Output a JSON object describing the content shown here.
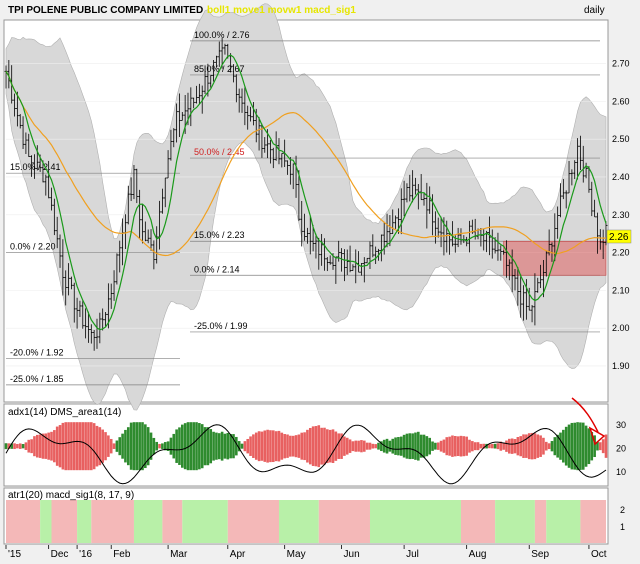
{
  "header": {
    "title": "TPI POLENE PUBLIC COMPANY LIMITED",
    "indicators": "boll1 move1 movw1 macd_sig1",
    "period": "daily"
  },
  "panels": {
    "adx_label": "adx1(14) DMS_area1(14)",
    "atr_label": "atr1(20) macd_sig1(8, 17, 9)"
  },
  "colors": {
    "bg": "#ffffff",
    "candle": "#000000",
    "band_fill": "#d8d8d8",
    "ma_fast": "#1a9a1a",
    "ma_slow": "#f0a020",
    "fib_line": "#808080",
    "box_fill": "#e06c6c",
    "price_tag": "#ffff00",
    "dms_pos": "#2e8b2e",
    "dms_neg": "#e86060",
    "atr_green": "#b8f0a8",
    "atr_red": "#f4b8b8",
    "annotation": "#e00000",
    "title_accent": "#e6e600"
  },
  "chart_data": {
    "type": "candlestick",
    "title": "TPI POLENE PUBLIC COMPANY LIMITED",
    "period": "daily",
    "y_axis": {
      "ticks": [
        1.9,
        2.0,
        2.1,
        2.2,
        2.3,
        2.4,
        2.5,
        2.6,
        2.7
      ],
      "tick_labels": [
        "1.90",
        "2.00",
        "2.10",
        "2.20",
        "2.30",
        "2.40",
        "2.50",
        "2.60",
        "2.70"
      ],
      "range": [
        1.81,
        2.81
      ]
    },
    "x_axis": {
      "labels": [
        "'15",
        "Dec",
        "'16",
        "Feb",
        "Mar",
        "Apr",
        "May",
        "Jun",
        "Jul",
        "Aug",
        "Sep",
        "Oct"
      ],
      "label_positions_day": [
        0,
        15,
        25,
        37,
        57,
        78,
        98,
        118,
        140,
        162,
        184,
        205
      ]
    },
    "last_price": "2.26",
    "fib_levels": [
      {
        "label": "100.0% / 2.76",
        "value": 2.76
      },
      {
        "label": "85.0% / 2.67",
        "value": 2.67
      },
      {
        "label": "50.0% / 2.45",
        "value": 2.45
      },
      {
        "label": "15.0% / 2.23",
        "value": 2.23
      },
      {
        "label": "0.0% / 2.14",
        "value": 2.14
      },
      {
        "label": "-25.0% / 1.99",
        "value": 1.99
      },
      {
        "label": "15.0% / 2.41",
        "value": 2.41
      },
      {
        "label": "0.0% / 2.20",
        "value": 2.2
      },
      {
        "label": "-20.0% / 1.92",
        "value": 1.92
      },
      {
        "label": "-25.0% / 1.85",
        "value": 1.85
      }
    ],
    "keypoints_day_close": [
      [
        0,
        2.68
      ],
      [
        8,
        2.45
      ],
      [
        14,
        2.4
      ],
      [
        20,
        2.15
      ],
      [
        25,
        2.05
      ],
      [
        30,
        1.98
      ],
      [
        33,
        2.0
      ],
      [
        37,
        2.1
      ],
      [
        42,
        2.3
      ],
      [
        45,
        2.4
      ],
      [
        48,
        2.25
      ],
      [
        52,
        2.2
      ],
      [
        56,
        2.42
      ],
      [
        60,
        2.55
      ],
      [
        66,
        2.6
      ],
      [
        72,
        2.68
      ],
      [
        77,
        2.73
      ],
      [
        82,
        2.62
      ],
      [
        86,
        2.55
      ],
      [
        90,
        2.5
      ],
      [
        96,
        2.45
      ],
      [
        101,
        2.42
      ],
      [
        103,
        2.3
      ],
      [
        107,
        2.22
      ],
      [
        112,
        2.2
      ],
      [
        118,
        2.18
      ],
      [
        124,
        2.17
      ],
      [
        130,
        2.22
      ],
      [
        136,
        2.28
      ],
      [
        141,
        2.36
      ],
      [
        147,
        2.35
      ],
      [
        152,
        2.27
      ],
      [
        158,
        2.22
      ],
      [
        163,
        2.25
      ],
      [
        169,
        2.23
      ],
      [
        175,
        2.18
      ],
      [
        180,
        2.1
      ],
      [
        184,
        2.04
      ],
      [
        189,
        2.15
      ],
      [
        194,
        2.3
      ],
      [
        198,
        2.4
      ],
      [
        201,
        2.48
      ],
      [
        204,
        2.4
      ],
      [
        207,
        2.3
      ],
      [
        209,
        2.22
      ],
      [
        211,
        2.26
      ]
    ],
    "box": {
      "day_start": 175,
      "day_end": 211,
      "y_low": 2.14,
      "y_high": 2.23
    },
    "adx_panel": {
      "ticks": [
        10,
        20,
        30
      ],
      "tick_labels": [
        "10",
        "20",
        "30"
      ],
      "range": [
        5,
        38
      ]
    },
    "atr_panel": {
      "ticks": [
        1,
        2
      ],
      "tick_labels": [
        "1",
        "2"
      ]
    },
    "atr_bands": [
      {
        "from": 0,
        "to": 12,
        "state": "red"
      },
      {
        "from": 12,
        "to": 16,
        "state": "green"
      },
      {
        "from": 16,
        "to": 25,
        "state": "red"
      },
      {
        "from": 25,
        "to": 30,
        "state": "green"
      },
      {
        "from": 30,
        "to": 45,
        "state": "red"
      },
      {
        "from": 45,
        "to": 55,
        "state": "green"
      },
      {
        "from": 55,
        "to": 62,
        "state": "red"
      },
      {
        "from": 62,
        "to": 78,
        "state": "green"
      },
      {
        "from": 78,
        "to": 96,
        "state": "red"
      },
      {
        "from": 96,
        "to": 110,
        "state": "green"
      },
      {
        "from": 110,
        "to": 128,
        "state": "red"
      },
      {
        "from": 128,
        "to": 160,
        "state": "green"
      },
      {
        "from": 160,
        "to": 172,
        "state": "red"
      },
      {
        "from": 172,
        "to": 186,
        "state": "green"
      },
      {
        "from": 186,
        "to": 190,
        "state": "red"
      },
      {
        "from": 190,
        "to": 202,
        "state": "green"
      },
      {
        "from": 202,
        "to": 211,
        "state": "red"
      }
    ]
  }
}
